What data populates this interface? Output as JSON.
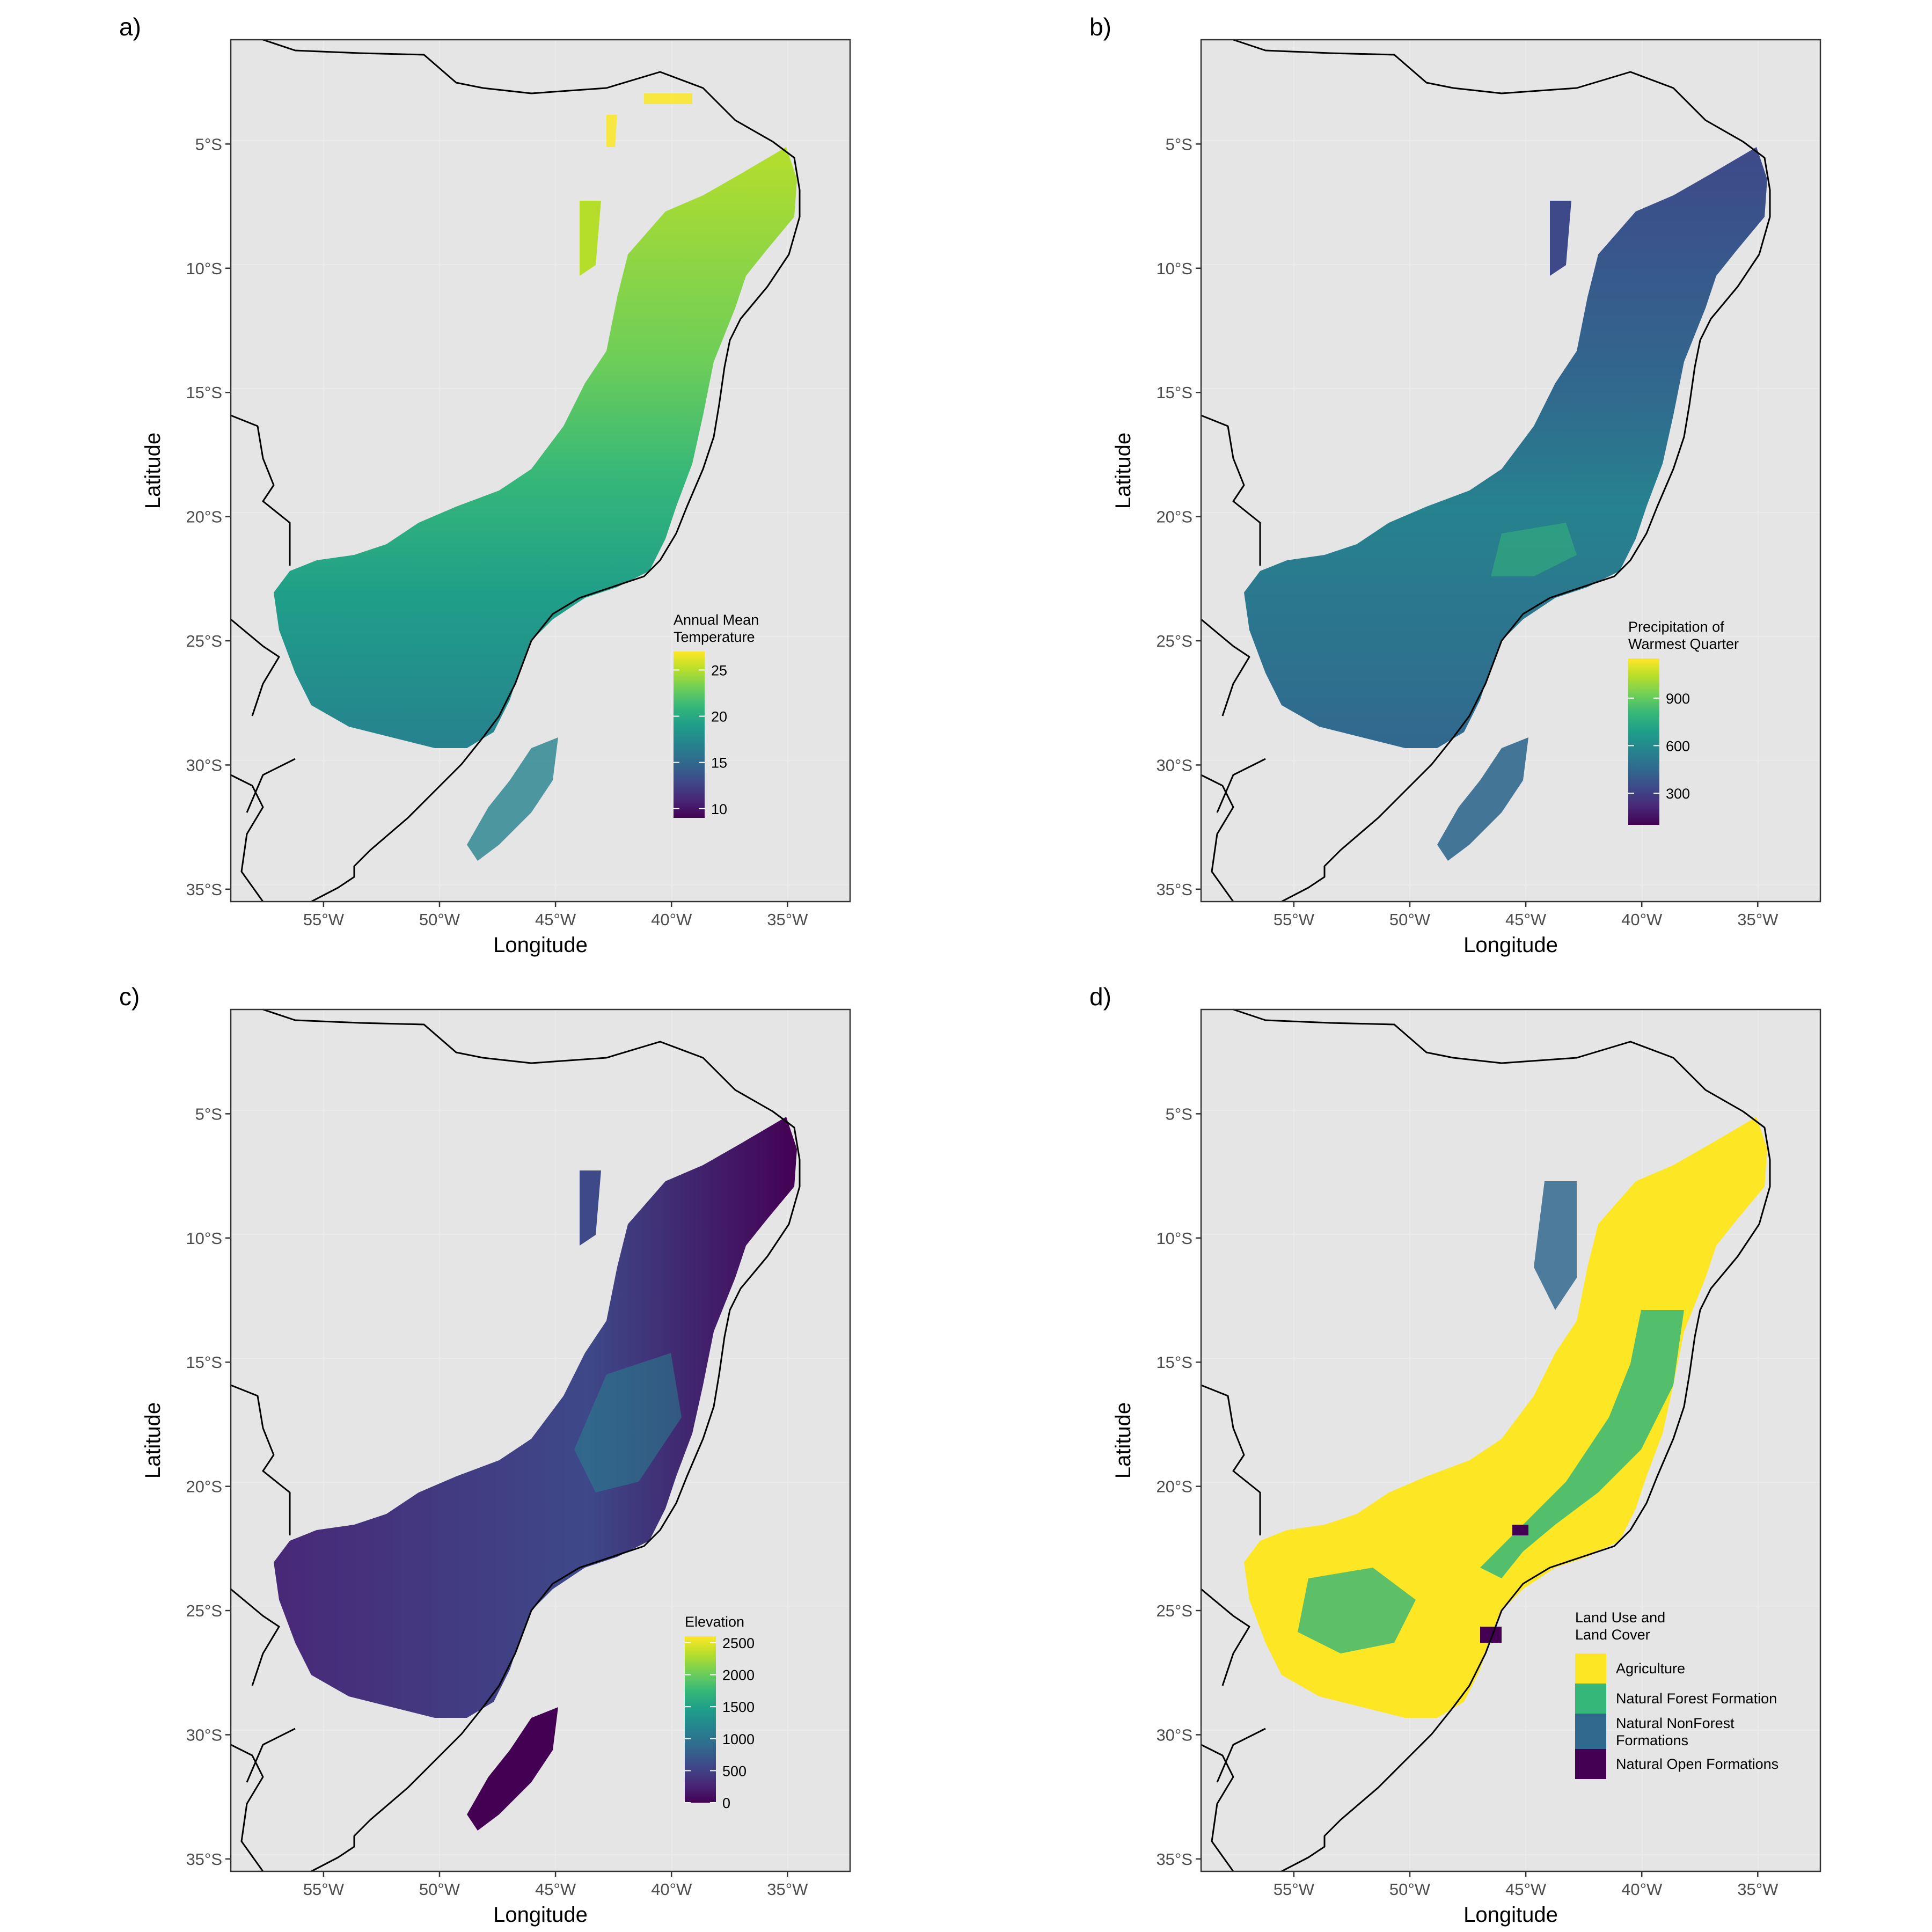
{
  "panels": [
    {
      "letter": "a)",
      "xlabel": "Longitude",
      "ylabel": "Latitude",
      "legend": {
        "type": "continuous",
        "title_lines": [
          "Annual Mean",
          "Temperature"
        ],
        "min": 9,
        "max": 27,
        "ticks": [
          10,
          15,
          20,
          25
        ],
        "tick_labels": [
          "10",
          "15",
          "20",
          "25"
        ]
      }
    },
    {
      "letter": "b)",
      "xlabel": "Longitude",
      "ylabel": "Latitude",
      "legend": {
        "type": "continuous",
        "title_lines": [
          "Precipitation of",
          "Warmest Quarter"
        ],
        "min": 100,
        "max": 1150,
        "ticks": [
          300,
          600,
          900
        ],
        "tick_labels": [
          "300",
          "600",
          "900"
        ]
      }
    },
    {
      "letter": "c)",
      "xlabel": "Longitude",
      "ylabel": "Latitude",
      "legend": {
        "type": "continuous",
        "title_lines": [
          "Elevation"
        ],
        "min": 0,
        "max": 2600,
        "ticks": [
          0,
          500,
          1000,
          1500,
          2000,
          2500
        ],
        "tick_labels": [
          "0",
          "500",
          "1000",
          "1500",
          "2000",
          "2500"
        ]
      }
    },
    {
      "letter": "d)",
      "xlabel": "Longitude",
      "ylabel": "Latitude",
      "legend": {
        "type": "discrete",
        "title_lines": [
          "Land Use and",
          "Land Cover"
        ],
        "items": [
          {
            "label_lines": [
              "Agriculture"
            ],
            "color": "#fde725"
          },
          {
            "label_lines": [
              "Natural Forest Formation"
            ],
            "color": "#35b779"
          },
          {
            "label_lines": [
              "Natural NonForest",
              "Formations"
            ],
            "color": "#31688e"
          },
          {
            "label_lines": [
              "Natural Open Formations"
            ],
            "color": "#440154"
          }
        ]
      }
    }
  ],
  "map": {
    "lon_min": -59,
    "lon_max": -32.3,
    "lat_min": -35.5,
    "lat_max": -0.8,
    "x_ticks": [
      -55,
      -50,
      -45,
      -40,
      -35
    ],
    "x_tick_labels": [
      "55°W",
      "50°W",
      "45°W",
      "40°W",
      "35°W"
    ],
    "y_ticks": [
      -5,
      -10,
      -15,
      -20,
      -25,
      -30,
      -35
    ],
    "y_tick_labels": [
      "5°S",
      "10°S",
      "15°S",
      "20°S",
      "25°S",
      "30°S",
      "35°S"
    ]
  },
  "colors": {
    "panel_background": "#e5e5e5",
    "gridline": "#ebebeb",
    "coastline": "#000000",
    "viridis": [
      "#440154",
      "#482878",
      "#3e4989",
      "#31688e",
      "#26828e",
      "#1f9e89",
      "#35b779",
      "#6ece58",
      "#b5de2b",
      "#fde725"
    ]
  }
}
